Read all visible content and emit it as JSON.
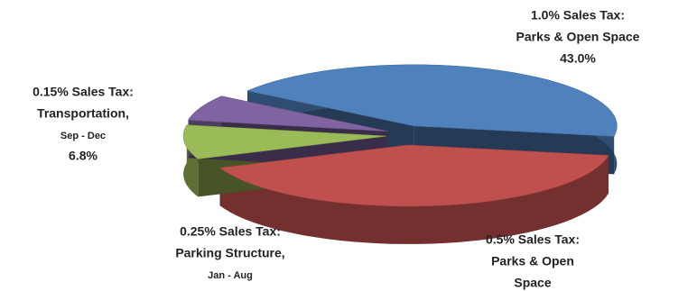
{
  "chart_data": {
    "type": "pie3d",
    "categories": [
      [
        "1.0% Sales Tax:",
        "Parks & Open Space"
      ],
      [
        "0.5% Sales Tax:",
        "Parks & Open",
        "Space"
      ],
      [
        "0.25% Sales Tax:",
        "Parking Structure,",
        "Jan - Aug"
      ],
      [
        "0.15% Sales Tax:",
        "Transportation,",
        "Sep - Dec"
      ]
    ],
    "values": [
      43.0,
      41.2,
      9.0,
      6.8
    ],
    "value_labels": [
      "43.0%",
      null,
      null,
      "6.8%"
    ],
    "colors": [
      "#4f81bd",
      "#c0504d",
      "#9bbb59",
      "#8064a2"
    ]
  }
}
